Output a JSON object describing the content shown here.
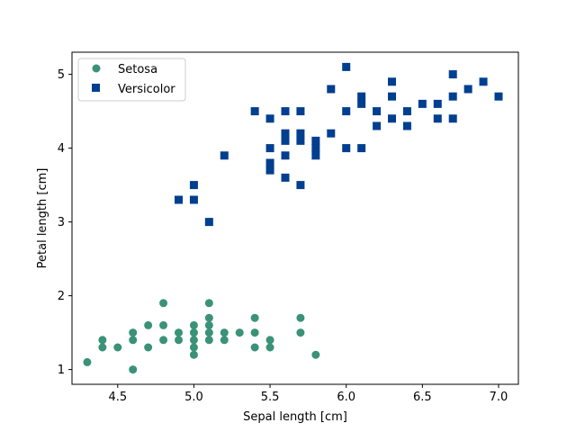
{
  "chart_data": {
    "type": "scatter",
    "xlabel": "Sepal length [cm]",
    "ylabel": "Petal length [cm]",
    "xlim": [
      4.2,
      7.13
    ],
    "ylim": [
      0.8,
      5.3
    ],
    "xticks": [
      4.5,
      5.0,
      5.5,
      6.0,
      6.5,
      7.0
    ],
    "xtick_labels": [
      "4.5",
      "5.0",
      "5.5",
      "6.0",
      "6.5",
      "7.0"
    ],
    "yticks": [
      1,
      2,
      3,
      4,
      5
    ],
    "ytick_labels": [
      "1",
      "2",
      "3",
      "4",
      "5"
    ],
    "grid": false,
    "legend_position": "upper-left",
    "series": [
      {
        "name": "Setosa",
        "marker": "circle",
        "color": "#3a9278",
        "points": [
          [
            4.3,
            1.1
          ],
          [
            4.4,
            1.4
          ],
          [
            4.4,
            1.3
          ],
          [
            4.5,
            1.3
          ],
          [
            4.6,
            1.5
          ],
          [
            4.6,
            1.4
          ],
          [
            4.6,
            1.0
          ],
          [
            4.7,
            1.6
          ],
          [
            4.7,
            1.3
          ],
          [
            4.8,
            1.9
          ],
          [
            4.8,
            1.6
          ],
          [
            4.8,
            1.4
          ],
          [
            4.9,
            1.5
          ],
          [
            4.9,
            1.4
          ],
          [
            5.0,
            1.6
          ],
          [
            5.0,
            1.5
          ],
          [
            5.0,
            1.4
          ],
          [
            5.0,
            1.3
          ],
          [
            5.0,
            1.2
          ],
          [
            5.1,
            1.9
          ],
          [
            5.1,
            1.7
          ],
          [
            5.1,
            1.6
          ],
          [
            5.1,
            1.5
          ],
          [
            5.1,
            1.4
          ],
          [
            5.2,
            1.5
          ],
          [
            5.2,
            1.4
          ],
          [
            5.3,
            1.5
          ],
          [
            5.4,
            1.7
          ],
          [
            5.4,
            1.5
          ],
          [
            5.4,
            1.3
          ],
          [
            5.5,
            1.4
          ],
          [
            5.5,
            1.3
          ],
          [
            5.7,
            1.7
          ],
          [
            5.7,
            1.5
          ],
          [
            5.8,
            1.2
          ]
        ]
      },
      {
        "name": "Versicolor",
        "marker": "square",
        "color": "#003f8f",
        "points": [
          [
            4.9,
            3.3
          ],
          [
            5.0,
            3.5
          ],
          [
            5.0,
            3.3
          ],
          [
            5.1,
            3.0
          ],
          [
            5.2,
            3.9
          ],
          [
            5.4,
            4.5
          ],
          [
            5.5,
            4.4
          ],
          [
            5.5,
            4.0
          ],
          [
            5.5,
            3.8
          ],
          [
            5.5,
            3.7
          ],
          [
            5.6,
            4.5
          ],
          [
            5.6,
            4.2
          ],
          [
            5.6,
            4.1
          ],
          [
            5.6,
            3.9
          ],
          [
            5.6,
            3.6
          ],
          [
            5.7,
            4.5
          ],
          [
            5.7,
            4.2
          ],
          [
            5.7,
            4.1
          ],
          [
            5.7,
            3.5
          ],
          [
            5.8,
            4.1
          ],
          [
            5.8,
            4.0
          ],
          [
            5.8,
            3.9
          ],
          [
            5.9,
            4.8
          ],
          [
            5.9,
            4.2
          ],
          [
            6.0,
            5.1
          ],
          [
            6.0,
            4.5
          ],
          [
            6.0,
            4.0
          ],
          [
            6.1,
            4.7
          ],
          [
            6.1,
            4.6
          ],
          [
            6.1,
            4.0
          ],
          [
            6.2,
            4.5
          ],
          [
            6.2,
            4.3
          ],
          [
            6.3,
            4.9
          ],
          [
            6.3,
            4.7
          ],
          [
            6.3,
            4.4
          ],
          [
            6.4,
            4.5
          ],
          [
            6.4,
            4.3
          ],
          [
            6.5,
            4.6
          ],
          [
            6.6,
            4.6
          ],
          [
            6.6,
            4.4
          ],
          [
            6.7,
            5.0
          ],
          [
            6.7,
            4.7
          ],
          [
            6.7,
            4.4
          ],
          [
            6.8,
            4.8
          ],
          [
            6.9,
            4.9
          ],
          [
            7.0,
            4.7
          ]
        ]
      }
    ]
  }
}
